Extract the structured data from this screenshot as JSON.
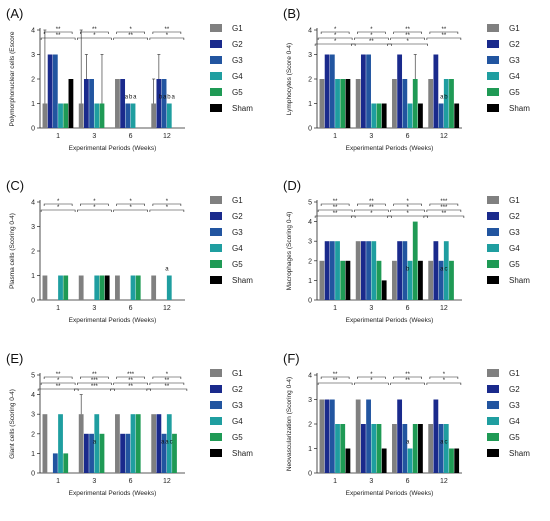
{
  "series_colors": {
    "G1": "#808080",
    "G2": "#1a2a8c",
    "G3": "#2255a0",
    "G4": "#1f9ea0",
    "G5": "#1f9a55",
    "Sham": "#000000"
  },
  "legend": [
    "G1",
    "G2",
    "G3",
    "G4",
    "G5",
    "Sham"
  ],
  "chart_data": [
    {
      "type": "bar",
      "panel": "(A)",
      "ylabel": "Polymorphonuclear cells (Escore",
      "xlabel": "Experimental Periods (Weeks)",
      "categories": [
        "1",
        "3",
        "6",
        "12"
      ],
      "ylim": [
        0,
        4
      ],
      "yticks": [
        "0",
        "1",
        "2",
        "3",
        "4"
      ],
      "series": [
        {
          "name": "G1",
          "values": [
            1,
            1,
            2,
            1
          ],
          "err": [
            3,
            3,
            0,
            1
          ]
        },
        {
          "name": "G2",
          "values": [
            3,
            2,
            2,
            2
          ],
          "err": [
            0,
            1,
            0,
            1
          ]
        },
        {
          "name": "G3",
          "values": [
            3,
            2,
            1,
            2
          ],
          "err": [
            0,
            0,
            0,
            0
          ]
        },
        {
          "name": "G4",
          "values": [
            1,
            1,
            1,
            1
          ],
          "err": [
            0,
            0,
            0,
            0
          ]
        },
        {
          "name": "G5",
          "values": [
            1,
            1,
            0,
            0
          ],
          "err": [
            0,
            2,
            0,
            0
          ]
        },
        {
          "name": "Sham",
          "values": [
            2,
            0,
            0,
            0
          ],
          "err": [
            0,
            0,
            0,
            0
          ]
        }
      ],
      "group_annotations": [
        [],
        [],
        [
          "a",
          "b",
          "a"
        ],
        [
          "b",
          "a",
          "b",
          "a"
        ]
      ],
      "sig_marks": [
        "**",
        "**",
        "**",
        "*",
        "*",
        "**",
        "**",
        "*"
      ]
    },
    {
      "type": "bar",
      "panel": "(B)",
      "ylabel": "Lymphocytes (Score 0-4)",
      "xlabel": "Experimental Periods (Weeks)",
      "categories": [
        "1",
        "3",
        "6",
        "12"
      ],
      "ylim": [
        0,
        4
      ],
      "yticks": [
        "0",
        "1",
        "2",
        "3",
        "4"
      ],
      "series": [
        {
          "name": "G1",
          "values": [
            2,
            2,
            2,
            2
          ],
          "err": [
            0,
            0,
            0,
            0
          ]
        },
        {
          "name": "G2",
          "values": [
            3,
            3,
            3,
            3
          ],
          "err": [
            0,
            0,
            0,
            0
          ]
        },
        {
          "name": "G3",
          "values": [
            3,
            3,
            2,
            1
          ],
          "err": [
            0,
            0,
            0,
            0
          ]
        },
        {
          "name": "G4",
          "values": [
            2,
            1,
            1,
            2
          ],
          "err": [
            0,
            0,
            0,
            0
          ]
        },
        {
          "name": "G5",
          "values": [
            2,
            1,
            2,
            2
          ],
          "err": [
            0,
            0,
            1,
            0
          ]
        },
        {
          "name": "Sham",
          "values": [
            2,
            1,
            1,
            1
          ],
          "err": [
            0,
            0,
            0,
            0
          ]
        }
      ],
      "group_annotations": [
        [],
        [],
        [],
        [
          "a",
          "b"
        ]
      ],
      "sig_marks": [
        "*",
        "*",
        "*",
        "*",
        "*",
        "**",
        "**",
        "**",
        "*",
        "**",
        "**"
      ]
    },
    {
      "type": "bar",
      "panel": "(C)",
      "ylabel": "Plasma cells (Scoring 0-4)",
      "xlabel": "Experimental Periods (Weeks)",
      "categories": [
        "1",
        "3",
        "6",
        "12"
      ],
      "ylim": [
        0,
        4
      ],
      "yticks": [
        "0",
        "1",
        "2",
        "3",
        "4"
      ],
      "series": [
        {
          "name": "G1",
          "values": [
            1,
            1,
            1,
            1
          ],
          "err": [
            0,
            0,
            0,
            0
          ]
        },
        {
          "name": "G2",
          "values": [
            0,
            0,
            0,
            0
          ],
          "err": [
            0,
            0,
            0,
            0
          ]
        },
        {
          "name": "G3",
          "values": [
            0,
            0,
            0,
            0
          ],
          "err": [
            0,
            0,
            0,
            0
          ]
        },
        {
          "name": "G4",
          "values": [
            1,
            1,
            1,
            1
          ],
          "err": [
            0,
            0,
            0,
            0
          ]
        },
        {
          "name": "G5",
          "values": [
            1,
            1,
            1,
            0
          ],
          "err": [
            0,
            0,
            0,
            0
          ]
        },
        {
          "name": "Sham",
          "values": [
            0,
            1,
            0,
            0
          ],
          "err": [
            0,
            0,
            0,
            0
          ]
        }
      ],
      "group_annotations": [
        [],
        [],
        [],
        [
          "a"
        ]
      ],
      "sig_marks": [
        "*",
        "*",
        "*",
        "*",
        "*",
        "*",
        "*",
        "*"
      ]
    },
    {
      "type": "bar",
      "panel": "(D)",
      "ylabel": "Macrophages (Scoring 0-4)",
      "xlabel": "Experimental Periods (Weeks)",
      "categories": [
        "1",
        "3",
        "6",
        "12"
      ],
      "ylim": [
        0,
        5
      ],
      "yticks": [
        "0",
        "1",
        "2",
        "3",
        "4",
        "5"
      ],
      "series": [
        {
          "name": "G1",
          "values": [
            2,
            3,
            2,
            2
          ],
          "err": [
            0,
            0,
            0,
            0
          ]
        },
        {
          "name": "G2",
          "values": [
            3,
            3,
            3,
            3
          ],
          "err": [
            0,
            0,
            0,
            0
          ]
        },
        {
          "name": "G3",
          "values": [
            3,
            3,
            3,
            2
          ],
          "err": [
            0,
            0,
            0,
            0
          ]
        },
        {
          "name": "G4",
          "values": [
            3,
            3,
            2,
            3
          ],
          "err": [
            0,
            0,
            0,
            0
          ]
        },
        {
          "name": "G5",
          "values": [
            2,
            2,
            4,
            2
          ],
          "err": [
            0,
            0,
            0,
            0
          ]
        },
        {
          "name": "Sham",
          "values": [
            2,
            1,
            2,
            0
          ],
          "err": [
            0,
            0,
            0,
            0
          ]
        }
      ],
      "group_annotations": [
        [],
        [],
        [
          "b"
        ],
        [
          "a",
          "c"
        ]
      ],
      "sig_marks": [
        "**",
        "**",
        "**",
        "**",
        "**",
        "*",
        "*",
        "*",
        "*",
        "***",
        "***",
        "**"
      ]
    },
    {
      "type": "bar",
      "panel": "(E)",
      "ylabel": "Giant cells (Scoring 0-4)",
      "xlabel": "Experimental Periods (Weeks)",
      "categories": [
        "1",
        "3",
        "6",
        "12"
      ],
      "ylim": [
        0,
        5
      ],
      "yticks": [
        "0",
        "1",
        "2",
        "3",
        "4",
        "5"
      ],
      "series": [
        {
          "name": "G1",
          "values": [
            3,
            3,
            3,
            3
          ],
          "err": [
            0,
            1,
            0,
            0
          ]
        },
        {
          "name": "G2",
          "values": [
            0,
            2,
            2,
            3
          ],
          "err": [
            0,
            0,
            0,
            0
          ]
        },
        {
          "name": "G3",
          "values": [
            1,
            2,
            2,
            2
          ],
          "err": [
            0,
            0,
            0,
            0
          ]
        },
        {
          "name": "G4",
          "values": [
            3,
            3,
            3,
            3
          ],
          "err": [
            0,
            0,
            0,
            0
          ]
        },
        {
          "name": "G5",
          "values": [
            1,
            2,
            3,
            2
          ],
          "err": [
            0,
            0,
            0,
            0
          ]
        },
        {
          "name": "Sham",
          "values": [
            0,
            0,
            0,
            0
          ],
          "err": [
            0,
            0,
            0,
            0
          ]
        }
      ],
      "group_annotations": [
        [],
        [
          "a"
        ],
        [],
        [
          "a",
          "a",
          "c"
        ]
      ],
      "sig_marks": [
        "**",
        "*",
        "**",
        "**",
        "***",
        "***",
        "***",
        "**",
        "**",
        "*",
        "**",
        "**"
      ]
    },
    {
      "type": "bar",
      "panel": "(F)",
      "ylabel": "Neovascularization (Scoring 0-4)",
      "xlabel": "Experimental Periods (Weeks)",
      "categories": [
        "1",
        "3",
        "6",
        "12"
      ],
      "ylim": [
        0,
        4
      ],
      "yticks": [
        "0",
        "1",
        "2",
        "3",
        "4"
      ],
      "series": [
        {
          "name": "G1",
          "values": [
            3,
            3,
            2,
            2
          ],
          "err": [
            0,
            0,
            0,
            0
          ]
        },
        {
          "name": "G2",
          "values": [
            3,
            2,
            3,
            3
          ],
          "err": [
            0,
            0,
            0,
            0
          ]
        },
        {
          "name": "G3",
          "values": [
            3,
            3,
            2,
            2
          ],
          "err": [
            0,
            0,
            0,
            0
          ]
        },
        {
          "name": "G4",
          "values": [
            2,
            2,
            1,
            2
          ],
          "err": [
            0,
            0,
            0,
            0
          ]
        },
        {
          "name": "G5",
          "values": [
            2,
            2,
            2,
            1
          ],
          "err": [
            0,
            0,
            0,
            0
          ]
        },
        {
          "name": "Sham",
          "values": [
            1,
            1,
            2,
            1
          ],
          "err": [
            0,
            0,
            0,
            0
          ]
        }
      ],
      "group_annotations": [
        [],
        [],
        [
          "a"
        ],
        [
          "a",
          "c"
        ]
      ],
      "sig_marks": [
        "**",
        "**",
        "*",
        "*",
        "**",
        "**",
        "*",
        "*"
      ]
    }
  ]
}
